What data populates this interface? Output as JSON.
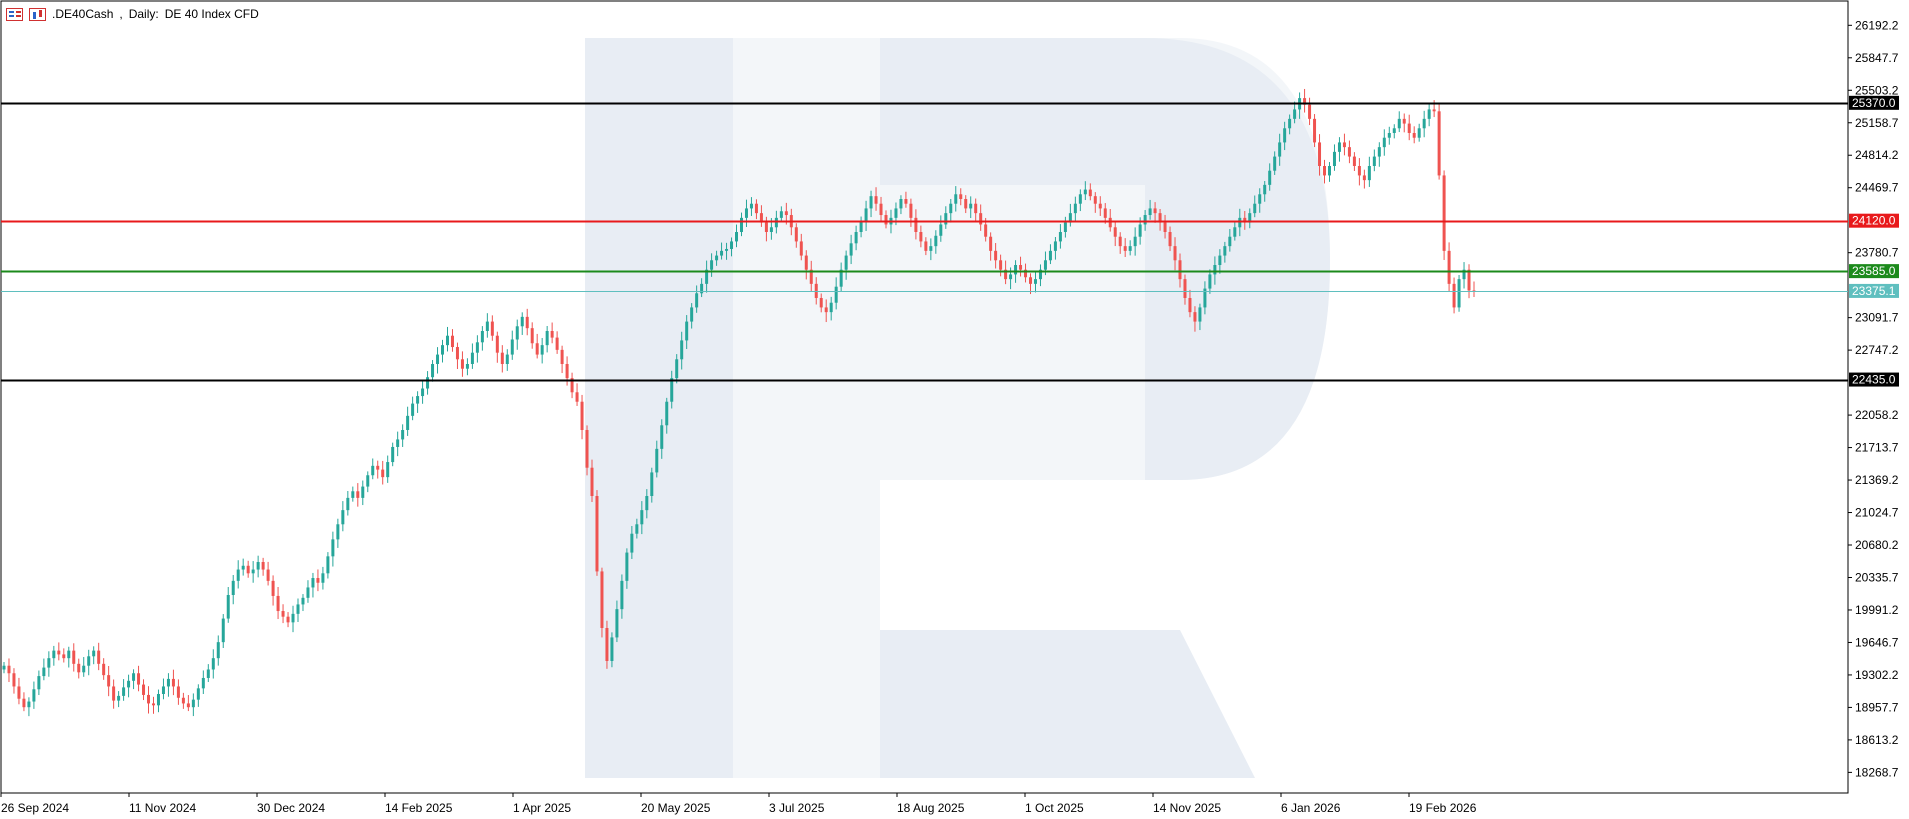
{
  "header": {
    "icon_left": "table-icon",
    "icon_right": "candles-icon",
    "symbol": ".DE40Cash",
    "timeframe": "Daily:",
    "instrument": "DE 40 Index CFD"
  },
  "colors": {
    "bull": "#26a69a",
    "bear": "#ef5350",
    "support_resistance": "#000000",
    "resistance_red": "#e8191b",
    "support_green": "#1b8a1b",
    "current_price": "#5fbfbf",
    "watermark": "#e8edf4"
  },
  "chart_data": {
    "type": "candlestick",
    "ylim": [
      18050,
      26450
    ],
    "y_ticks": [
      "26192.2",
      "25847.7",
      "25503.2",
      "25158.7",
      "24814.2",
      "24469.7",
      "23780.7",
      "23091.7",
      "22747.2",
      "22058.2",
      "21713.7",
      "21369.2",
      "21024.7",
      "20680.2",
      "20335.7",
      "19991.2",
      "19646.7",
      "19302.2",
      "18957.7",
      "18613.2",
      "18268.7"
    ],
    "x_ticks": [
      "26 Sep 2024",
      "11 Nov 2024",
      "30 Dec 2024",
      "14 Feb 2025",
      "1 Apr 2025",
      "20 May 2025",
      "3 Jul 2025",
      "18 Aug 2025",
      "1 Oct 2025",
      "14 Nov 2025",
      "6 Jan 2026",
      "19 Feb 2026"
    ],
    "levels": [
      {
        "value": 25370.0,
        "label": "25370.0",
        "color": "#000000"
      },
      {
        "value": 24120.0,
        "label": "24120.0",
        "color": "#e8191b"
      },
      {
        "value": 23585.0,
        "label": "23585.0",
        "color": "#1b8a1b"
      },
      {
        "value": 23375.1,
        "label": "23375.1",
        "color": "#5fbfbf"
      },
      {
        "value": 22435.0,
        "label": "22435.0",
        "color": "#000000"
      }
    ],
    "closes": [
      19400,
      19320,
      19180,
      19050,
      18960,
      19020,
      19150,
      19290,
      19380,
      19480,
      19560,
      19520,
      19480,
      19560,
      19420,
      19330,
      19400,
      19500,
      19560,
      19420,
      19300,
      19180,
      19030,
      19080,
      19170,
      19240,
      19320,
      19200,
      19090,
      19000,
      18980,
      19100,
      19180,
      19260,
      19180,
      19060,
      19000,
      18960,
      19040,
      19160,
      19270,
      19360,
      19480,
      19650,
      19900,
      20150,
      20300,
      20420,
      20460,
      20380,
      20420,
      20500,
      20420,
      20300,
      20140,
      19980,
      19920,
      19860,
      19950,
      20050,
      20120,
      20230,
      20330,
      20280,
      20380,
      20560,
      20740,
      20900,
      21050,
      21180,
      21250,
      21180,
      21300,
      21420,
      21520,
      21480,
      21400,
      21560,
      21720,
      21800,
      21900,
      22050,
      22180,
      22260,
      22340,
      22460,
      22600,
      22700,
      22800,
      22900,
      22780,
      22650,
      22550,
      22600,
      22720,
      22830,
      22950,
      23050,
      22900,
      22720,
      22600,
      22700,
      22860,
      23000,
      23100,
      22980,
      22820,
      22700,
      22800,
      22950,
      22880,
      22750,
      22600,
      22450,
      22300,
      22200,
      21900,
      21500,
      21200,
      20400,
      19800,
      19450,
      19700,
      20000,
      20300,
      20600,
      20800,
      20900,
      21050,
      21200,
      21450,
      21700,
      21950,
      22200,
      22450,
      22650,
      22850,
      23050,
      23200,
      23350,
      23450,
      23600,
      23700,
      23750,
      23800,
      23820,
      23900,
      24000,
      24150,
      24250,
      24300,
      24200,
      24100,
      24000,
      24050,
      24150,
      24220,
      24180,
      24050,
      23900,
      23750,
      23600,
      23450,
      23300,
      23200,
      23150,
      23250,
      23420,
      23600,
      23750,
      23880,
      24000,
      24120,
      24250,
      24380,
      24300,
      24180,
      24080,
      24150,
      24250,
      24350,
      24300,
      24150,
      24000,
      23900,
      23800,
      23850,
      23960,
      24080,
      24200,
      24300,
      24400,
      24350,
      24250,
      24300,
      24200,
      24080,
      23950,
      23800,
      23700,
      23600,
      23500,
      23550,
      23650,
      23600,
      23520,
      23450,
      23500,
      23600,
      23700,
      23800,
      23900,
      24000,
      24100,
      24200,
      24300,
      24400,
      24450,
      24380,
      24300,
      24250,
      24150,
      24050,
      23950,
      23850,
      23800,
      23850,
      23950,
      24080,
      24180,
      24250,
      24200,
      24100,
      24000,
      23850,
      23700,
      23500,
      23300,
      23150,
      23050,
      23200,
      23400,
      23550,
      23650,
      23750,
      23850,
      23950,
      24050,
      24150,
      24100,
      24200,
      24300,
      24400,
      24500,
      24650,
      24800,
      24950,
      25100,
      25200,
      25300,
      25420,
      25350,
      25200,
      24950,
      24700,
      24600,
      24700,
      24850,
      24950,
      24900,
      24800,
      24700,
      24600,
      24550,
      24700,
      24800,
      24900,
      25000,
      25050,
      25100,
      25200,
      25150,
      25050,
      25000,
      25100,
      25200,
      25300,
      25280,
      24600,
      23800,
      23450,
      23200,
      23500,
      23600,
      23380,
      23375
    ],
    "watermark_glyph": "R"
  }
}
